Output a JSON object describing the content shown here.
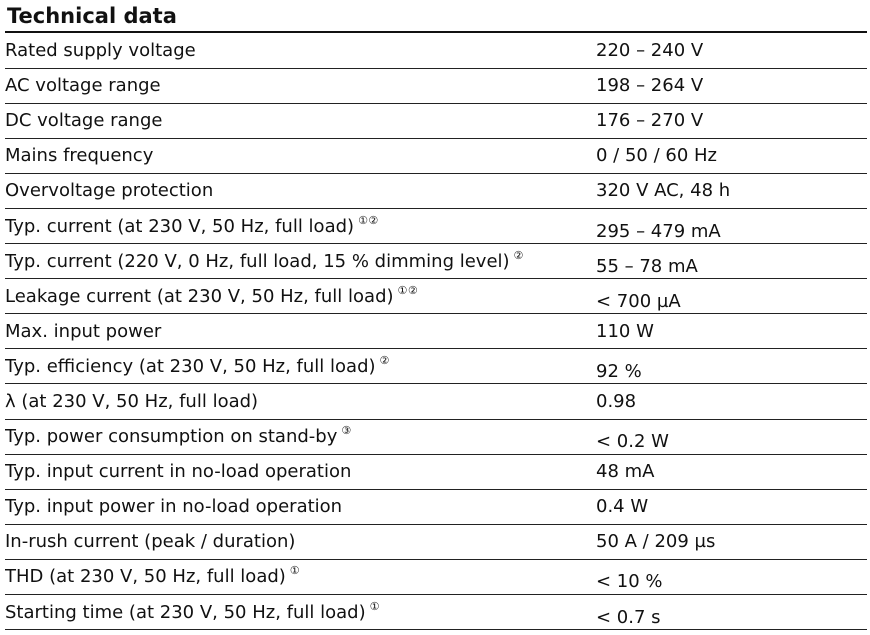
{
  "title": "Technical data",
  "rows": [
    {
      "label": "Rated supply voltage",
      "note": "",
      "value": "220 – 240 V"
    },
    {
      "label": "AC voltage range",
      "note": "",
      "value": "198 – 264 V"
    },
    {
      "label": "DC voltage range",
      "note": "",
      "value": "176 – 270 V"
    },
    {
      "label": "Mains frequency",
      "note": "",
      "value": "0 / 50 / 60 Hz"
    },
    {
      "label": "Overvoltage protection",
      "note": "",
      "value": "320 V AC, 48 h"
    },
    {
      "label": "Typ. current (at 230 V, 50 Hz, full load)",
      "note": "①②",
      "value": "295 – 479 mA"
    },
    {
      "label": "Typ. current (220 V, 0 Hz, full load, 15 % dimming level)",
      "note": "②",
      "value": "55 – 78 mA"
    },
    {
      "label": "Leakage current (at 230 V, 50 Hz, full load)",
      "note": "①②",
      "value": "< 700 µA"
    },
    {
      "label": "Max. input power",
      "note": "",
      "value": "110 W"
    },
    {
      "label": "Typ. efficiency (at 230 V, 50 Hz, full load)",
      "note": "②",
      "value": "92 %"
    },
    {
      "label": "λ (at 230 V, 50 Hz, full load)",
      "note": "",
      "value": "0.98"
    },
    {
      "label": "Typ. power consumption on stand-by",
      "note": "③",
      "value": "< 0.2 W"
    },
    {
      "label": "Typ. input current in no-load operation",
      "note": "",
      "value": "48 mA"
    },
    {
      "label": "Typ. input power in no-load operation",
      "note": "",
      "value": "0.4 W"
    },
    {
      "label": "In-rush current (peak / duration)",
      "note": "",
      "value": "50 A / 209 µs"
    },
    {
      "label": "THD (at 230 V, 50 Hz, full load)",
      "note": "①",
      "value": "< 10 %"
    },
    {
      "label": "Starting time (at 230 V, 50 Hz, full load)",
      "note": "①",
      "value": "< 0.7 s"
    }
  ]
}
